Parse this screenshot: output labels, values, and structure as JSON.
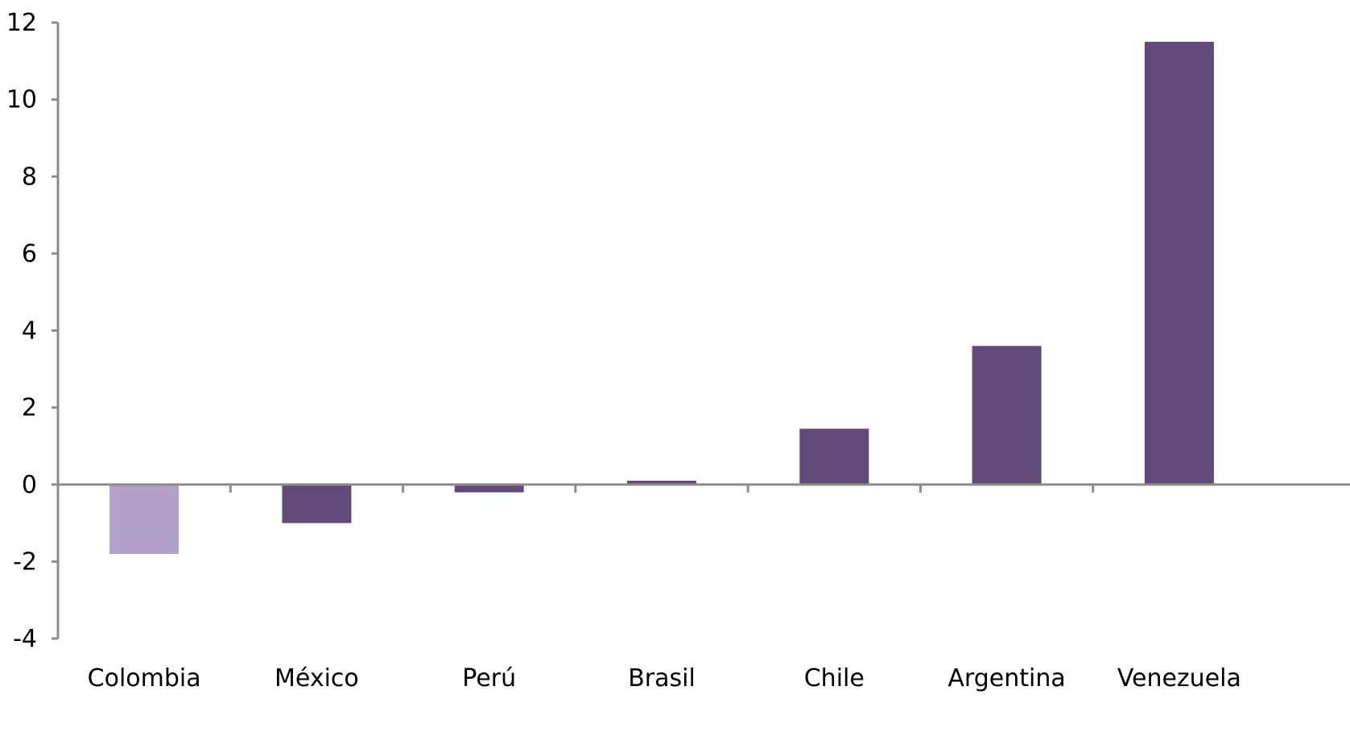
{
  "chart_data": {
    "type": "bar",
    "title": "",
    "xlabel": "",
    "ylabel": "",
    "categories": [
      "Colombia",
      "México",
      "Perú",
      "Brasil",
      "Chile",
      "Argentina",
      "Venezuela"
    ],
    "values": [
      -1.8,
      -1.0,
      -0.2,
      0.1,
      1.45,
      3.6,
      11.5
    ],
    "ylim": [
      -4,
      12
    ],
    "yticks": [
      12,
      10,
      8,
      6,
      4,
      2,
      0,
      -2,
      -4
    ],
    "grid": false,
    "legend": "none",
    "colors": {
      "bar": "#5f4a78",
      "highlight": "#b1a1c7",
      "axis": "#8c8c8c"
    },
    "highlight_index": 0
  }
}
